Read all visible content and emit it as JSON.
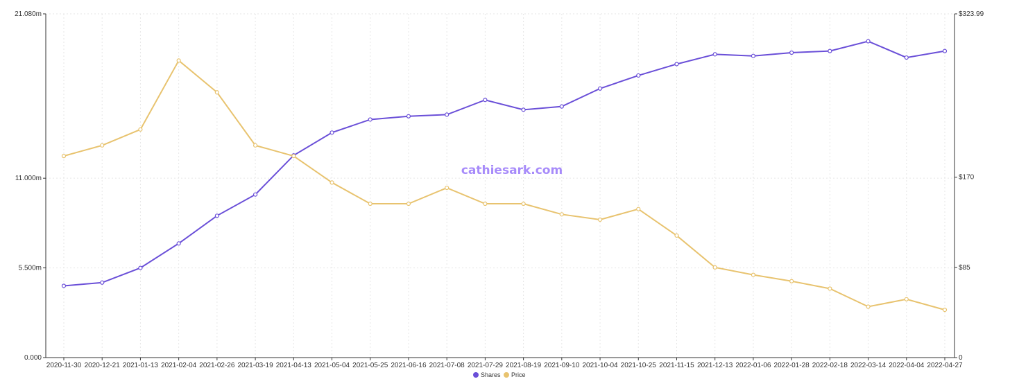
{
  "chart_data": {
    "type": "line",
    "watermark": "cathiesark.com",
    "x": [
      "2020-11-30",
      "2020-12-21",
      "2021-01-13",
      "2021-02-04",
      "2021-02-26",
      "2021-03-19",
      "2021-04-13",
      "2021-05-04",
      "2021-05-25",
      "2021-06-16",
      "2021-07-08",
      "2021-07-29",
      "2021-08-19",
      "2021-09-10",
      "2021-10-04",
      "2021-10-25",
      "2021-11-15",
      "2021-12-13",
      "2022-01-06",
      "2022-01-28",
      "2022-02-18",
      "2022-03-14",
      "2022-04-04",
      "2022-04-27"
    ],
    "x_tick_labels": [
      "2020-11-30",
      "2020-12-21",
      "2021-01-13",
      "2021-02-04",
      "2021-02-26",
      "2021-03-19",
      "2021-04-13",
      "2021-05-04",
      "2021-05-25",
      "2021-06-16",
      "2021-07-08",
      "2021-07-29",
      "2021-08-19",
      "2021-09-10",
      "2021-10-04",
      "2021-10-25",
      "2021-11-15",
      "2021-12-13",
      "2022-01-06",
      "2022-01-28",
      "2022-02-18",
      "2022-03-14",
      "2022-04-04",
      "2022-04-27"
    ],
    "y_left_ticks": [
      "21.080m",
      "11.000m",
      "5.500m",
      "0.000"
    ],
    "y_left_ticks_values": [
      21.08,
      11.0,
      5.5,
      0
    ],
    "y_right_ticks": [
      "$323.99",
      "$170",
      "$85",
      "0"
    ],
    "y_right_ticks_values": [
      323.99,
      170,
      85,
      0
    ],
    "y_left_range": [
      0,
      21.08
    ],
    "y_right_range": [
      0,
      323.99
    ],
    "grid": true,
    "legend_position": "bottom-center",
    "series": [
      {
        "name": "Shares",
        "color": "#6a4fd8",
        "axis": "left",
        "values": [
          4.4,
          4.6,
          5.5,
          7.0,
          8.7,
          10.0,
          12.4,
          13.8,
          14.6,
          14.8,
          14.9,
          15.8,
          15.2,
          15.4,
          16.5,
          17.3,
          18.0,
          18.6,
          18.5,
          18.7,
          18.8,
          19.4,
          18.4,
          18.8
        ]
      },
      {
        "name": "Price",
        "color": "#e8c36f",
        "axis": "right",
        "values": [
          190,
          200,
          215,
          280,
          250,
          200,
          190,
          165,
          145,
          145,
          160,
          145,
          145,
          135,
          130,
          140,
          115,
          85,
          78,
          72,
          65,
          48,
          55,
          45
        ]
      }
    ]
  }
}
